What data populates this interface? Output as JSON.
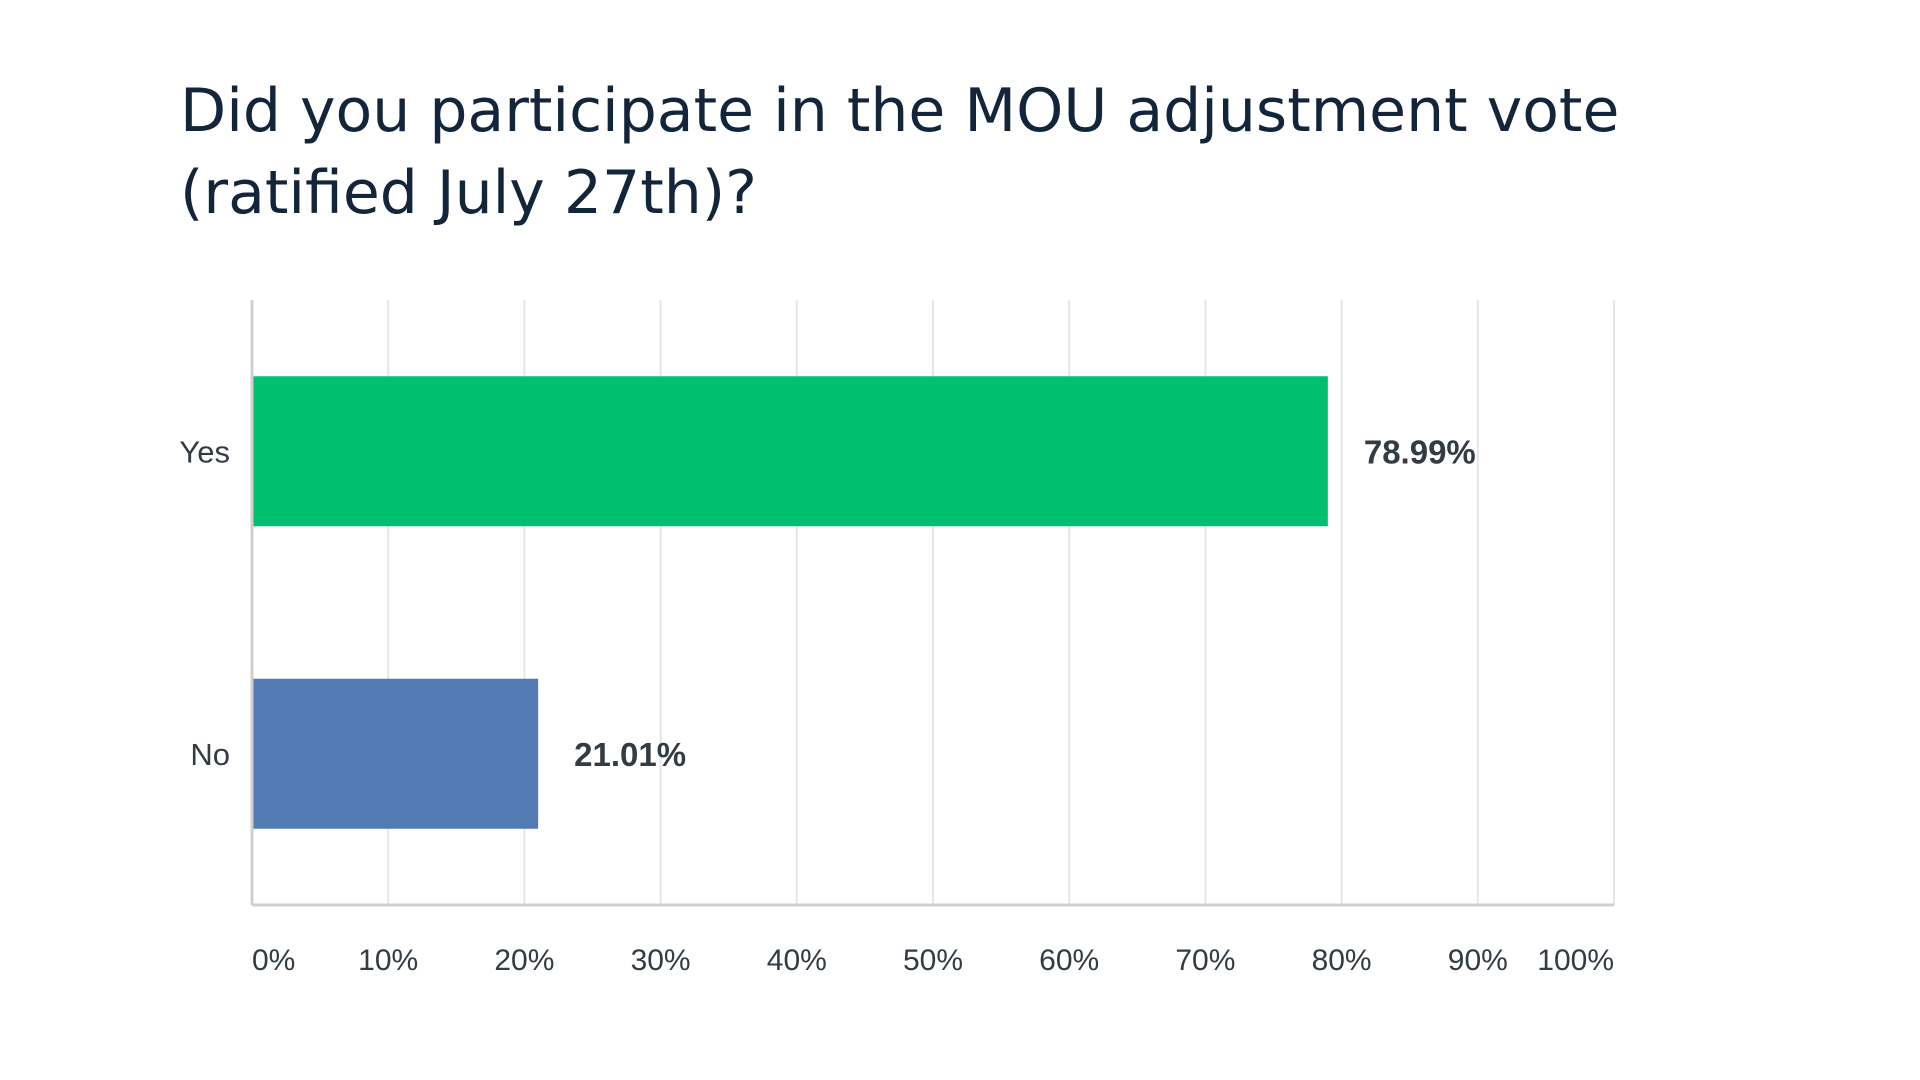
{
  "chart_data": {
    "type": "bar",
    "orientation": "horizontal",
    "title": "Did you participate in the MOU adjustment vote (ratified July 27th)?",
    "categories": [
      "Yes",
      "No"
    ],
    "values": [
      78.99,
      21.01
    ],
    "value_labels": [
      "78.99%",
      "21.01%"
    ],
    "bar_colors": [
      "#00c06f",
      "#527bb3"
    ],
    "xlim": [
      0,
      100
    ],
    "xticks": [
      0,
      10,
      20,
      30,
      40,
      50,
      60,
      70,
      80,
      90,
      100
    ],
    "xtick_labels": [
      "0%",
      "10%",
      "20%",
      "30%",
      "40%",
      "50%",
      "60%",
      "70%",
      "80%",
      "90%",
      "100%"
    ],
    "grid": true,
    "legend": "none"
  }
}
